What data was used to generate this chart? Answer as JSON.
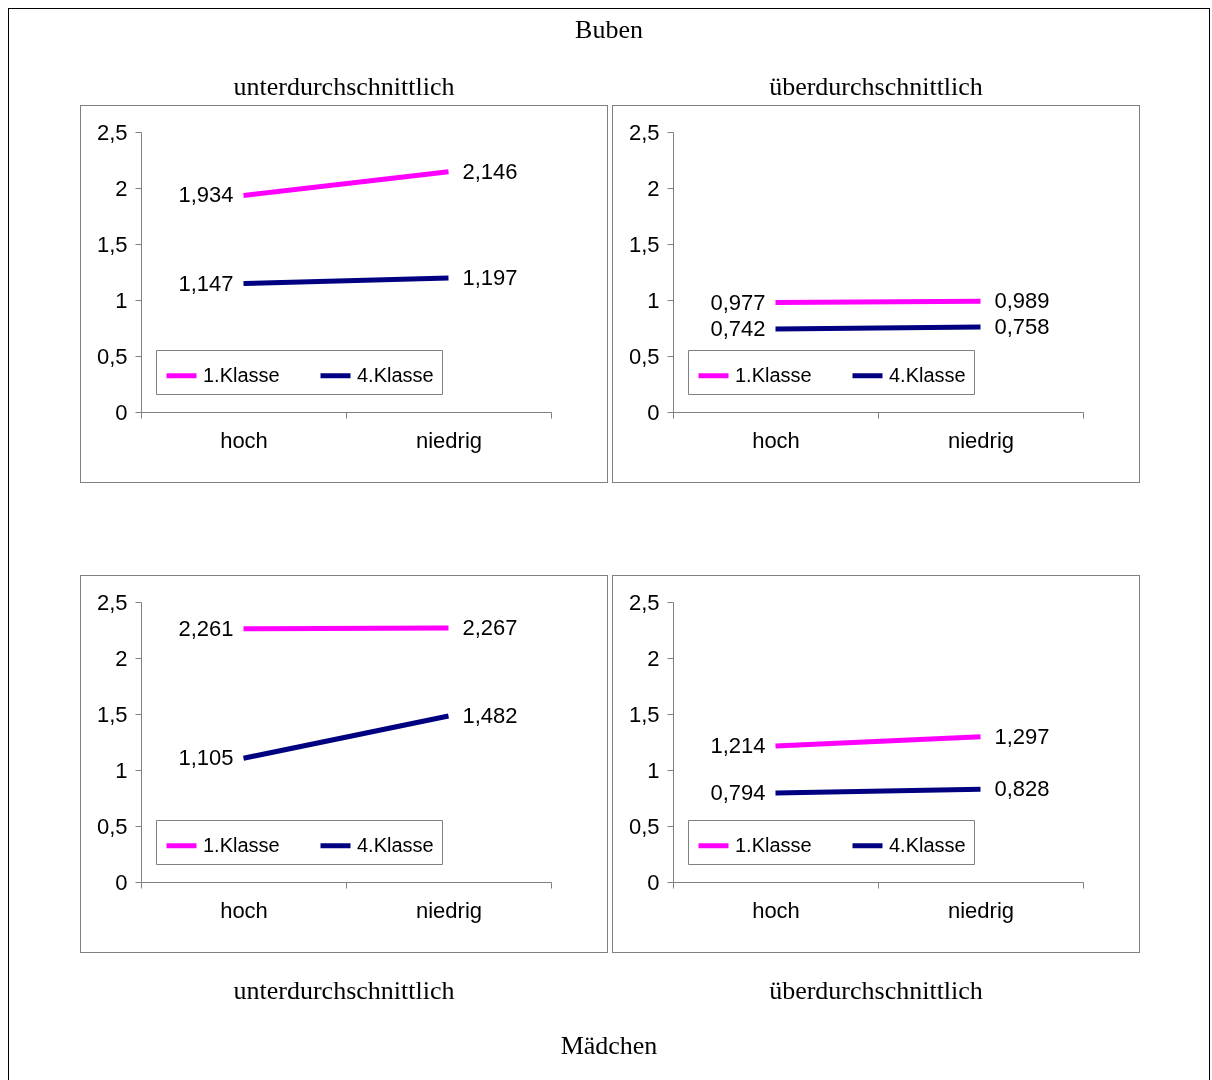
{
  "chart_data": [
    {
      "type": "line",
      "title": "unterdurchschnittlich",
      "annotations": [
        "Buben"
      ],
      "categories": [
        "hoch",
        "niedrig"
      ],
      "ylim": [
        0,
        2.5
      ],
      "yticks": [
        0,
        {
          "value": 0.5,
          "label": "0,5"
        },
        1,
        {
          "value": 1.5,
          "label": "1,5"
        },
        2,
        {
          "value": 2.5,
          "label": "2,5"
        }
      ],
      "legend": "bottom",
      "series": [
        {
          "name": "1.Klasse",
          "color": "#ff00ff",
          "values": [
            1.934,
            2.146
          ],
          "value_labels": [
            "1,934",
            "2,146"
          ]
        },
        {
          "name": "4.Klasse",
          "color": "#000080",
          "values": [
            1.147,
            1.197
          ],
          "value_labels": [
            "1,147",
            "1,197"
          ]
        }
      ]
    },
    {
      "type": "line",
      "title": "überdurchschnittlich",
      "categories": [
        "hoch",
        "niedrig"
      ],
      "ylim": [
        0,
        2.5
      ],
      "yticks": [
        0,
        {
          "value": 0.5,
          "label": "0,5"
        },
        1,
        {
          "value": 1.5,
          "label": "1,5"
        },
        2,
        {
          "value": 2.5,
          "label": "2,5"
        }
      ],
      "legend": "bottom",
      "series": [
        {
          "name": "1.Klasse",
          "color": "#ff00ff",
          "values": [
            0.977,
            0.989
          ],
          "value_labels": [
            "0,977",
            "0,989"
          ]
        },
        {
          "name": "4.Klasse",
          "color": "#000080",
          "values": [
            0.742,
            0.758
          ],
          "value_labels": [
            "0,742",
            "0,758"
          ]
        }
      ]
    },
    {
      "type": "line",
      "xlabel": "unterdurchschnittlich",
      "annotations": [
        "Mädchen"
      ],
      "categories": [
        "hoch",
        "niedrig"
      ],
      "ylim": [
        0,
        2.5
      ],
      "yticks": [
        0,
        {
          "value": 0.5,
          "label": "0,5"
        },
        1,
        {
          "value": 1.5,
          "label": "1,5"
        },
        2,
        {
          "value": 2.5,
          "label": "2,5"
        }
      ],
      "legend": "bottom",
      "series": [
        {
          "name": "1.Klasse",
          "color": "#ff00ff",
          "values": [
            2.261,
            2.267
          ],
          "value_labels": [
            "2,261",
            "2,267"
          ]
        },
        {
          "name": "4.Klasse",
          "color": "#000080",
          "values": [
            1.105,
            1.482
          ],
          "value_labels": [
            "1,105",
            "1,482"
          ]
        }
      ]
    },
    {
      "type": "line",
      "xlabel": "überdurchschnittlich",
      "categories": [
        "hoch",
        "niedrig"
      ],
      "ylim": [
        0,
        2.5
      ],
      "yticks": [
        0,
        {
          "value": 0.5,
          "label": "0,5"
        },
        1,
        {
          "value": 1.5,
          "label": "1,5"
        },
        2,
        {
          "value": 2.5,
          "label": "2,5"
        }
      ],
      "legend": "bottom",
      "series": [
        {
          "name": "1.Klasse",
          "color": "#ff00ff",
          "values": [
            1.214,
            1.297
          ],
          "value_labels": [
            "1,214",
            "1,297"
          ]
        },
        {
          "name": "4.Klasse",
          "color": "#000080",
          "values": [
            0.794,
            0.828
          ],
          "value_labels": [
            "0,794",
            "0,828"
          ]
        }
      ]
    }
  ]
}
